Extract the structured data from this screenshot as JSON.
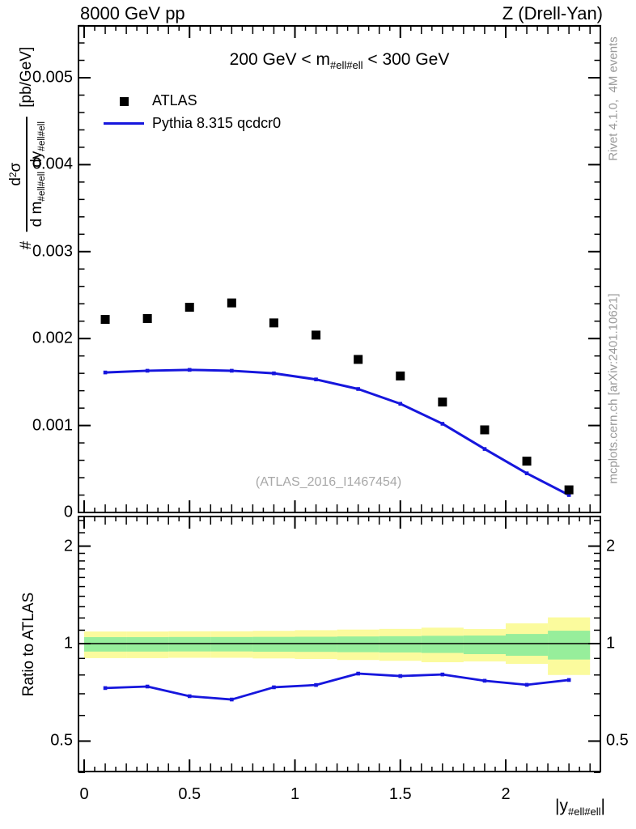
{
  "header": {
    "left": "8000 GeV pp",
    "right": "Z (Drell-Yan)"
  },
  "notes": {
    "rivet": "Rivet 4.1.0,  4M events",
    "mcplots": "mcplots.cern.ch [arXiv:2401.10621]"
  },
  "watermark": {
    "text": "(ATLAS_2016_I1467454)"
  },
  "labels": {
    "title": {
      "pre": "200 GeV < m",
      "sub": "#ell#ell",
      "post": " < 300 GeV"
    },
    "ylabel": {
      "hash": "#",
      "num_d": "d",
      "num_exp": "2",
      "num_sigma": "σ",
      "den_dm": "d m",
      "den_sub1": "#ell#ell",
      "den_dy": " dy",
      "den_sub2": "#ell#ell",
      "unit": "[pb/GeV]"
    },
    "xlabel": {
      "pre": "|y",
      "sub": "#ell#ell",
      "post": "|"
    },
    "ratio_ylabel": "Ratio to ATLAS"
  },
  "colors": {
    "blue": "#1616dd",
    "band_yellow": "#fbfb9d",
    "band_green": "#97ee9b",
    "black": "#000000"
  },
  "chart_data": [
    {
      "type": "scatter",
      "panel": "main",
      "title": "200 GeV < m_{#ell#ell} < 300 GeV",
      "xlabel": "|y_{#ell#ell}|",
      "ylabel": "# d^{2}σ / d m_{#ell#ell} dy_{#ell#ell} [pb/GeV]",
      "xlim": [
        -0.027,
        2.449
      ],
      "ylim": [
        0,
        0.0056
      ],
      "x_major_ticks": [
        0,
        0.5,
        1,
        1.5,
        2
      ],
      "x_tick_labels": [
        "0",
        "0.5",
        "1",
        "1.5",
        "2"
      ],
      "x_mid_step": 0.1,
      "x_minor_step": 0.05,
      "y_major_ticks": [
        0,
        0.001,
        0.002,
        0.003,
        0.004,
        0.005
      ],
      "y_tick_labels": [
        "0",
        "0.001",
        "0.002",
        "0.003",
        "0.004",
        "0.005"
      ],
      "y_minor_step": 0.0002,
      "x": [
        0.1,
        0.3,
        0.5,
        0.7,
        0.9,
        1.1,
        1.3,
        1.5,
        1.7,
        1.9,
        2.1,
        2.3
      ],
      "series": [
        {
          "name": "ATLAS",
          "style": "scatter",
          "marker": "filled-square",
          "color": "#000000",
          "values": [
            0.00222,
            0.00223,
            0.00236,
            0.00241,
            0.00218,
            0.00204,
            0.00176,
            0.00157,
            0.00127,
            0.00095,
            0.00059,
            0.00026
          ]
        },
        {
          "name": "Pythia 8.315 qcdcr0",
          "style": "line",
          "marker": "small-square",
          "color": "#1616dd",
          "values": [
            0.00161,
            0.00163,
            0.00164,
            0.00163,
            0.0016,
            0.00153,
            0.00142,
            0.00125,
            0.00102,
            0.00073,
            0.00045,
            0.0002
          ]
        }
      ]
    },
    {
      "type": "line",
      "panel": "ratio",
      "ylabel": "Ratio to ATLAS",
      "yscale": "log",
      "xlim": [
        -0.027,
        2.449
      ],
      "ylim": [
        0.4,
        2.47
      ],
      "y_major_ticks": [
        0.5,
        1,
        2
      ],
      "y_tick_labels": [
        "0.5",
        "1",
        "2"
      ],
      "y_minor_ticks": [
        0.4,
        0.6,
        0.7,
        0.8,
        0.9,
        1.1,
        1.2,
        1.3,
        1.4,
        1.5,
        1.6,
        1.7,
        1.8,
        1.9,
        2.2,
        2.4
      ],
      "reference_line_y": 1,
      "bin_edges": [
        0,
        0.2,
        0.4,
        0.6,
        0.8,
        1.0,
        1.2,
        1.4,
        1.6,
        1.8,
        2.0,
        2.2,
        2.4
      ],
      "bands": {
        "yellow": {
          "lo": [
            0.902,
            0.902,
            0.904,
            0.904,
            0.9,
            0.896,
            0.89,
            0.885,
            0.876,
            0.881,
            0.866,
            0.8
          ],
          "hi": [
            1.09,
            1.09,
            1.092,
            1.092,
            1.095,
            1.1,
            1.105,
            1.11,
            1.12,
            1.109,
            1.155,
            1.205
          ]
        },
        "green": {
          "lo": [
            0.945,
            0.945,
            0.946,
            0.946,
            0.944,
            0.943,
            0.941,
            0.939,
            0.936,
            0.928,
            0.917,
            0.893
          ],
          "hi": [
            1.047,
            1.047,
            1.048,
            1.048,
            1.049,
            1.05,
            1.052,
            1.054,
            1.057,
            1.059,
            1.071,
            1.096
          ]
        }
      },
      "x": [
        0.1,
        0.3,
        0.5,
        0.7,
        0.9,
        1.1,
        1.3,
        1.5,
        1.7,
        1.9,
        2.1,
        2.3
      ],
      "series": [
        {
          "name": "Pythia 8.315 qcdcr0",
          "color": "#1616dd",
          "values": [
            0.729,
            0.737,
            0.688,
            0.672,
            0.733,
            0.745,
            0.808,
            0.794,
            0.803,
            0.768,
            0.746,
            0.772
          ]
        }
      ]
    }
  ]
}
